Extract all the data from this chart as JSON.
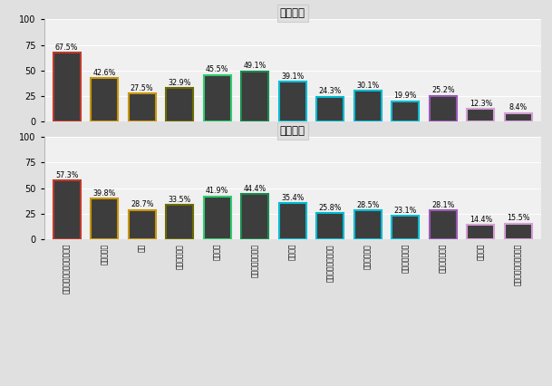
{
  "title1": "自社面接",
  "title2": "他社面接",
  "categories": [
    "学生時代に力を入れたこと",
    "性格・人柄",
    "学業",
    "志向・価値観",
    "志望動機",
    "長所・短所・特技",
    "課外活動",
    "チームでの取り組み",
    "ストレス対処",
    "志望先の理解度",
    "キャリアプラン",
    "時事問題",
    "あてはまるものはない"
  ],
  "values1": [
    67.5,
    42.6,
    27.5,
    32.9,
    45.5,
    49.1,
    39.1,
    24.3,
    30.1,
    19.9,
    25.2,
    12.3,
    8.4
  ],
  "values2": [
    57.3,
    39.8,
    28.7,
    33.5,
    41.9,
    44.4,
    35.4,
    25.8,
    28.5,
    23.1,
    28.1,
    14.4,
    15.5
  ],
  "bar_color": "#3d3d3d",
  "border_colors": [
    "#c0392b",
    "#c8960c",
    "#c8960c",
    "#6b6b00",
    "#2ecc71",
    "#1a8a50",
    "#00bcd4",
    "#00bcd4",
    "#00bcd4",
    "#00bcd4",
    "#9b59b6",
    "#d4a0d4",
    "#d4a0d4"
  ],
  "bg_color": "#e0e0e0",
  "plot_bg": "#f0f0f0",
  "ylim": [
    0,
    100
  ],
  "yticks": [
    0,
    25,
    50,
    75,
    100
  ],
  "label_fontsize": 5.5,
  "bar_value_fontsize": 5.8,
  "title_fontsize": 8.5
}
